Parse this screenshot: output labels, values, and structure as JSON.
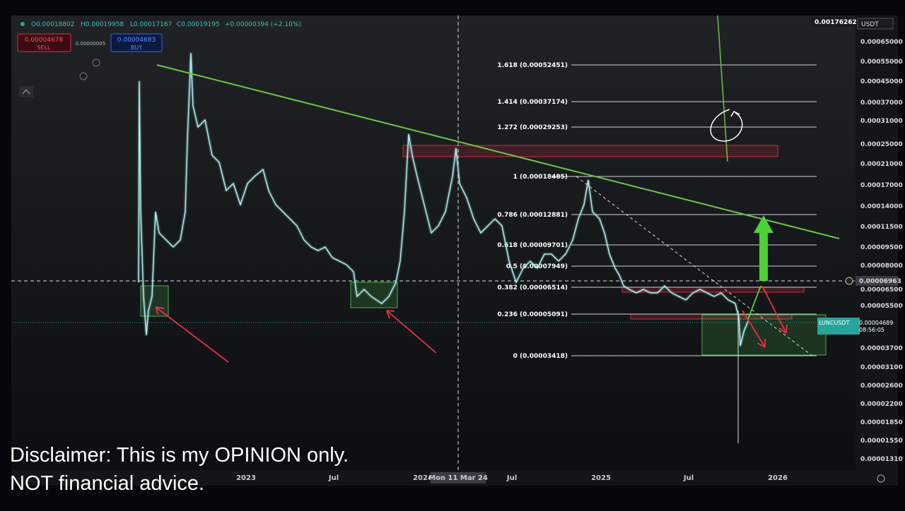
{
  "header": {
    "ohlc": [
      "O0.00018802",
      "H0.00019958",
      "L0.00017167",
      "C0.00019195",
      "+0.00000394 (+2.10%)"
    ],
    "sell": {
      "price": "0.00004678",
      "label": "SELL"
    },
    "spread": "0.00000005",
    "buy": {
      "price": "0.00004683",
      "label": "BUY"
    }
  },
  "fib_levels": [
    "1.618 (0.00052451)",
    "1.414 (0.00037174)",
    "1.272 (0.00029253)",
    "1 (0.00018485)",
    "0.786 (0.00012881)",
    "0.618 (0.00009701)",
    "0.5 (0.00007949)",
    "0.382 (0.00006514)",
    "0.236 (0.00005091)",
    "0 (0.00003418)"
  ],
  "price_axis": {
    "top_value": "0.00176262",
    "currency": "USDT",
    "labels": [
      "0.00065000",
      "0.00055000",
      "0.00045000",
      "0.00037000",
      "0.00031000",
      "0.00025000",
      "0.00021000",
      "0.00017000",
      "0.00014000",
      "0.00011500",
      "0.00009500",
      "0.00008000",
      "0.00006500",
      "0.00005500",
      "0.00003700",
      "0.00003100",
      "0.00002600",
      "0.00002200",
      "0.00001850",
      "0.00001550",
      "0.00001310"
    ],
    "crosshair": "0.00006963",
    "symbol_tag": {
      "symbol": "LUNCUSDT",
      "price": "0.00004689",
      "countdown": "08:56:05"
    }
  },
  "time_axis": [
    "2023",
    "Jul",
    "2024",
    "Mon 11 Mar 24",
    "Jul",
    "2025",
    "Jul",
    "2026"
  ],
  "disclaimer": [
    "Disclaimer: This is my OPINION only.",
    "NOT financial advice."
  ]
}
